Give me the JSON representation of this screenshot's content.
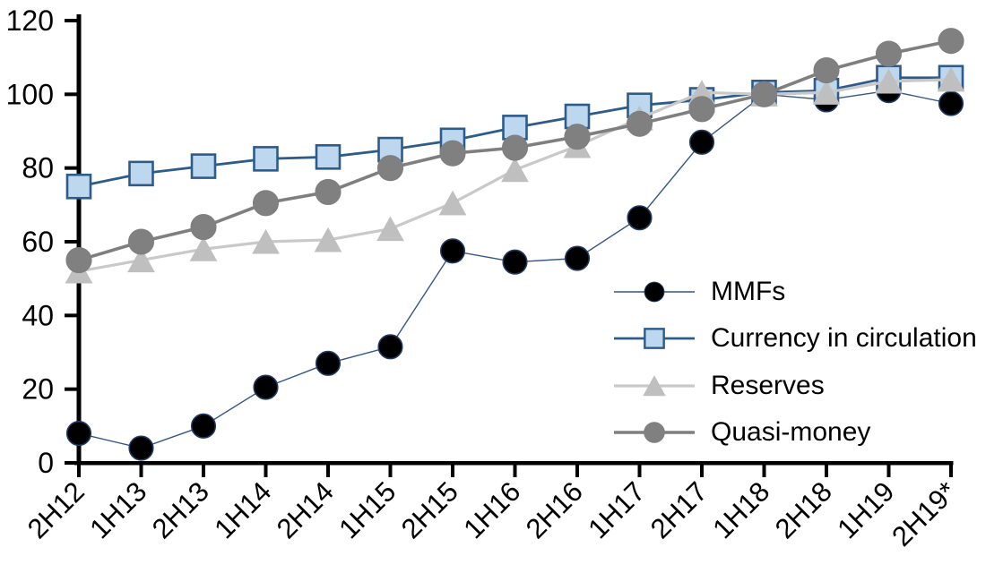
{
  "chart_data": {
    "type": "line",
    "title": "",
    "xlabel": "",
    "ylabel": "",
    "ylim": [
      0,
      120
    ],
    "ytick_step": 20,
    "grid": false,
    "legend_position": "inside-right",
    "axis_color": "#000000",
    "categories": [
      "2H12",
      "1H13",
      "2H13",
      "1H14",
      "2H14",
      "1H15",
      "2H15",
      "1H16",
      "2H16",
      "1H17",
      "2H17",
      "1H18",
      "2H18",
      "1H19",
      "2H19*"
    ],
    "series": [
      {
        "name": "MMFs",
        "marker": "circle",
        "fill": "#000000",
        "stroke": "#1F3864",
        "line_color": "#35558A",
        "line_width": 1.4,
        "marker_size": 26.5,
        "values": [
          8,
          4,
          10,
          20.5,
          27,
          31.5,
          57.5,
          54.5,
          55.5,
          66.5,
          87,
          100,
          98.5,
          101,
          97.5
        ]
      },
      {
        "name": "Currency in circulation",
        "marker": "square",
        "fill": "#BDD7EE",
        "stroke": "#2E5C8A",
        "line_color": "#2E5C8A",
        "line_width": 2.8,
        "marker_size": 26,
        "values": [
          75,
          78.5,
          80.5,
          82.5,
          83,
          85,
          87.5,
          91,
          94,
          97,
          98.5,
          100.5,
          101,
          104.5,
          104.5
        ]
      },
      {
        "name": "Reserves",
        "marker": "triangle",
        "fill": "#BFBFBF",
        "stroke": "#BFBFBF",
        "line_color": "#C9C9C9",
        "line_width": 3.2,
        "marker_size": 29,
        "values": [
          52,
          55,
          58,
          60,
          60.5,
          63.5,
          70.5,
          79.5,
          86,
          93.5,
          100.5,
          100,
          100.5,
          103.5,
          104
        ]
      },
      {
        "name": "Quasi-money",
        "marker": "circle",
        "fill": "#808080",
        "stroke": "#7F7F7F",
        "line_color": "#7F7F7F",
        "line_width": 3.6,
        "marker_size": 27.5,
        "values": [
          55,
          60,
          64,
          70.5,
          73.5,
          80,
          84,
          85.5,
          88.5,
          92,
          96,
          100,
          106.5,
          111,
          114.5
        ]
      }
    ]
  }
}
